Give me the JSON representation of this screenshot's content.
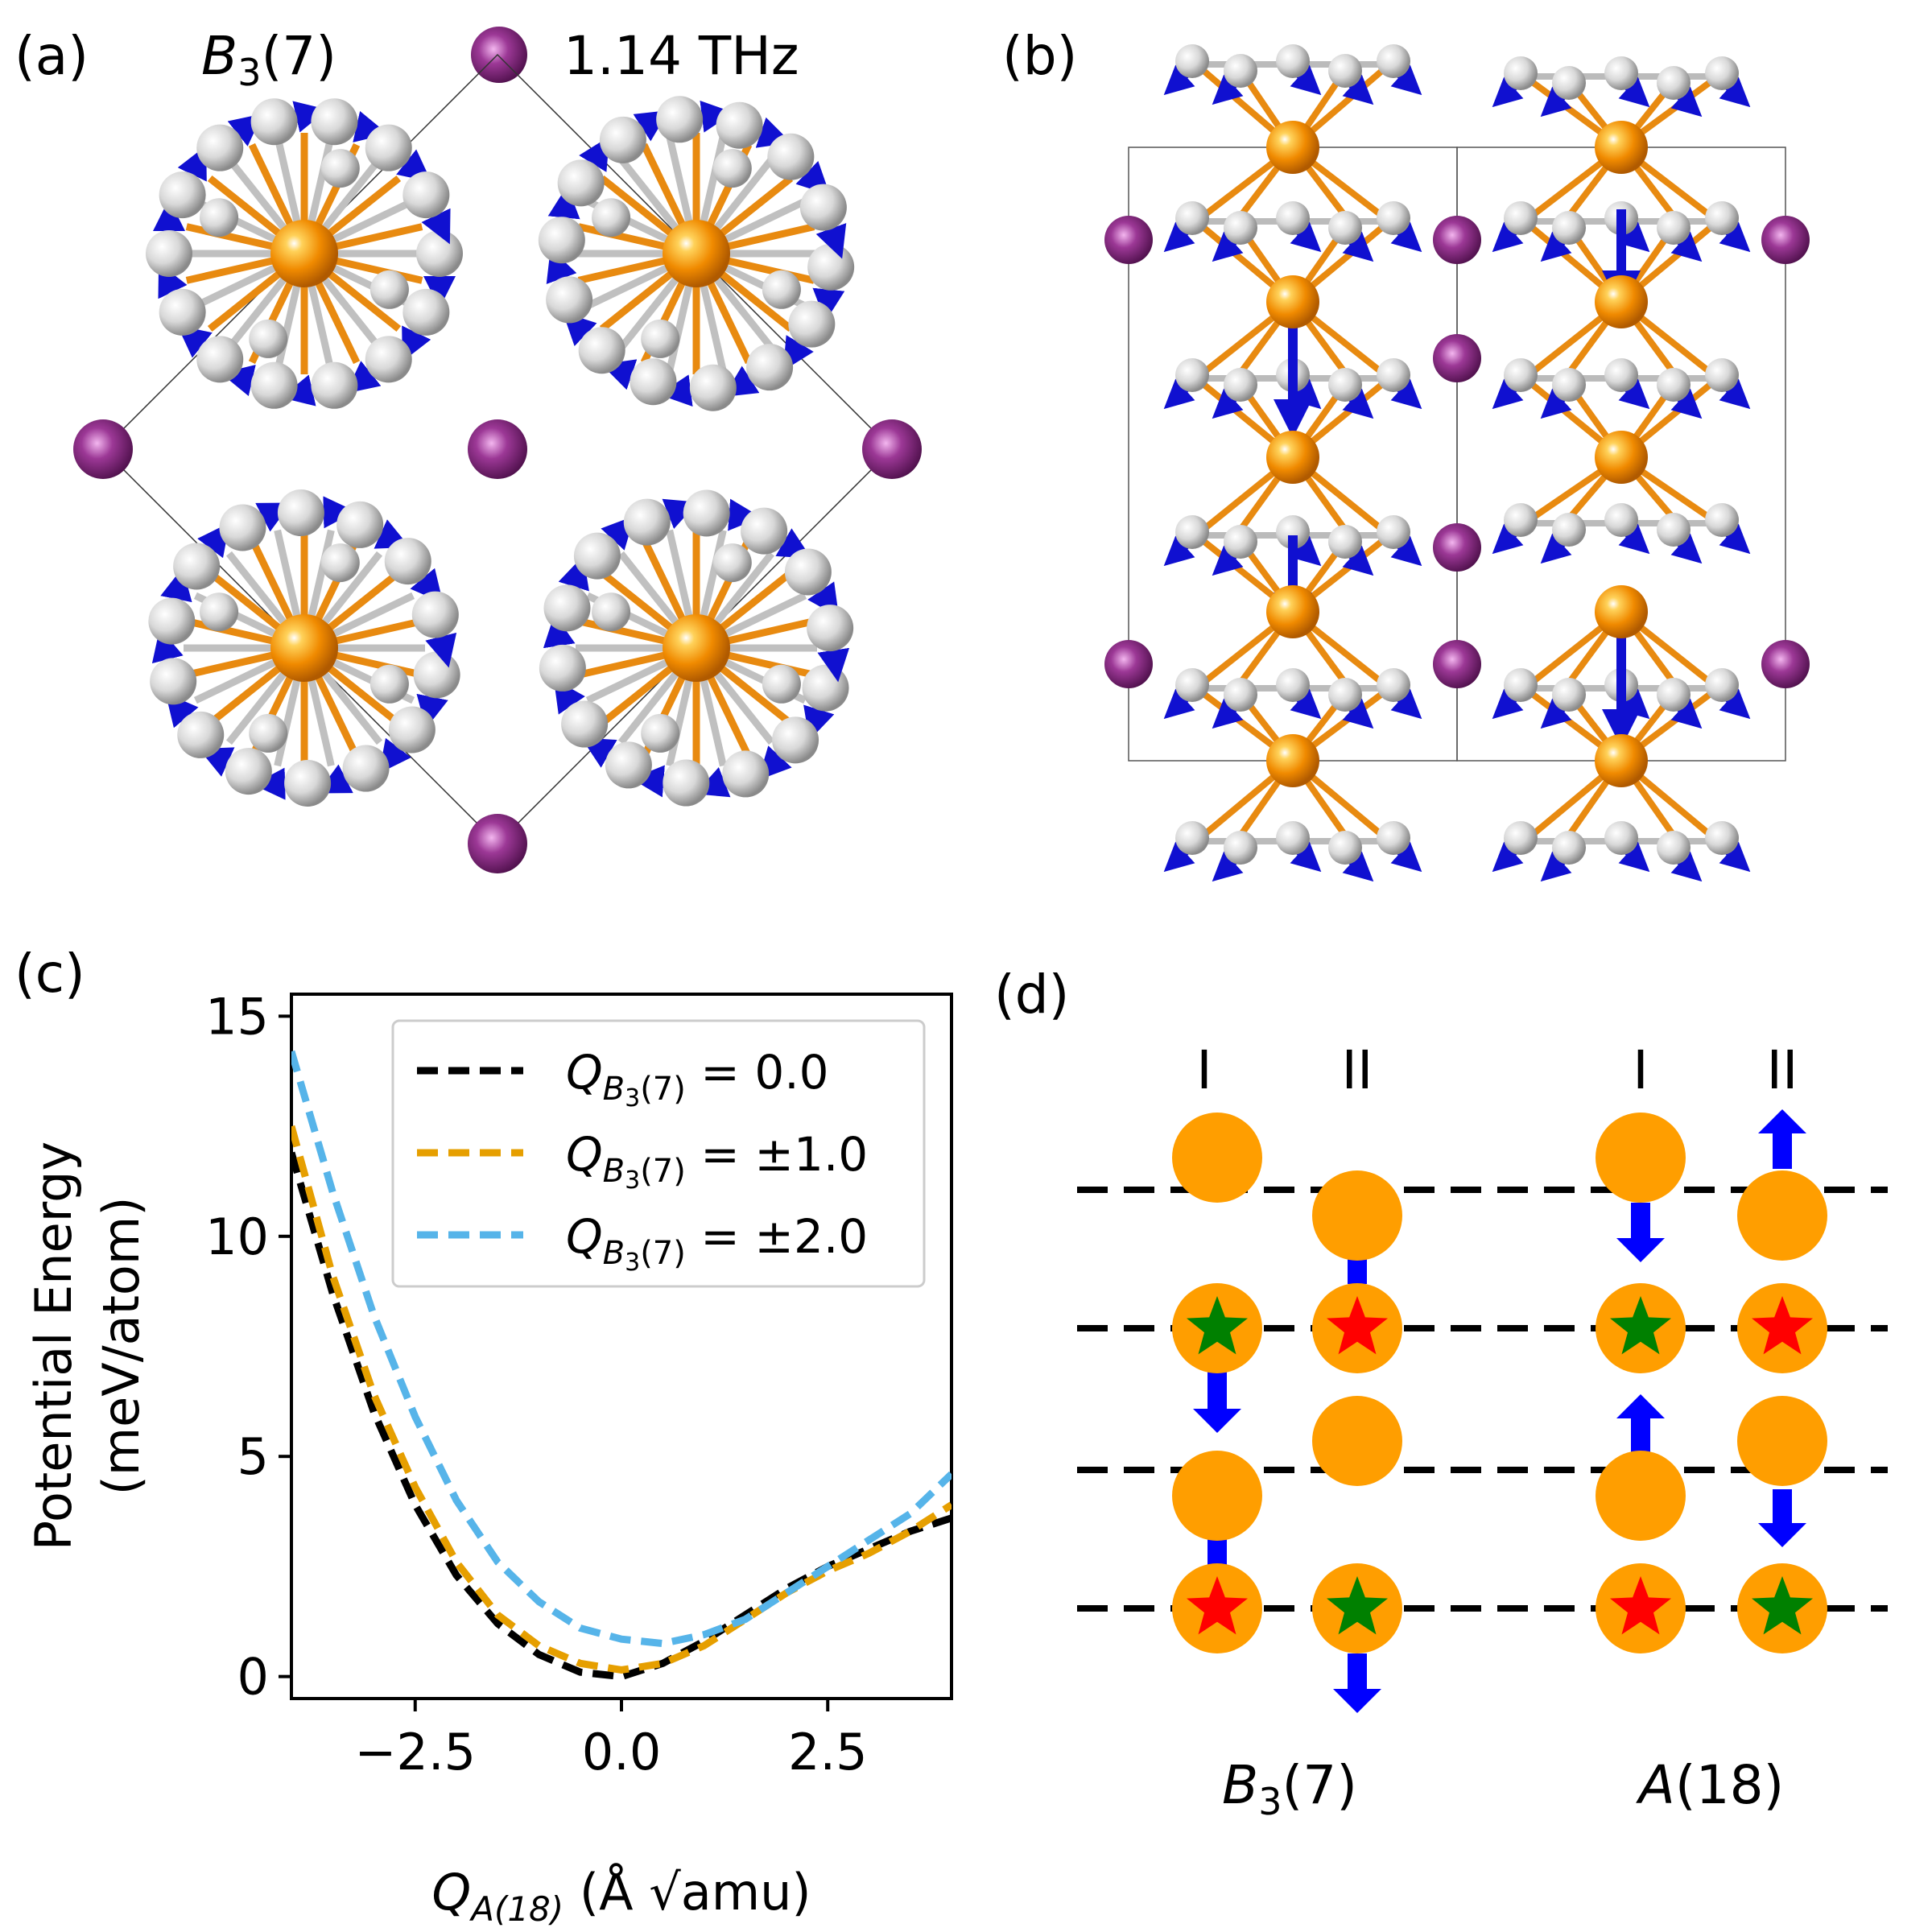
{
  "panel_a": {
    "label": "(a)",
    "mode_base": "B",
    "mode_sub": "3",
    "mode_suffix": "(7)",
    "frequency": "1.14 THz"
  },
  "panel_b": {
    "label": "(b)"
  },
  "panel_c": {
    "label": "(c)"
  },
  "panel_d": {
    "label": "(d)",
    "column_labels": [
      "I",
      "II",
      "I",
      "II"
    ],
    "group_1": {
      "base": "B",
      "sub": "3",
      "suffix": "(7)"
    },
    "group_2": {
      "base": "A",
      "suffix": "(18)"
    }
  },
  "colors": {
    "orange_atom": "#ff9e00",
    "silver_atom": "#c8c8c8",
    "purple_atom": "#8b2c86",
    "arrow_blue": "#0000ff",
    "star_green": "#008000",
    "star_red": "#ff0000"
  },
  "chart_data": {
    "type": "line",
    "xlabel_text": "(Å √amu)",
    "xlabel_var": "Q",
    "xlabel_sub": "A(18)",
    "ylabel_line1": "Potential Energy",
    "ylabel_line2": "(meV/atom)",
    "xlim": [
      -4,
      4
    ],
    "ylim": [
      -0.5,
      15.5
    ],
    "xticks": [
      -2.5,
      0.0,
      2.5
    ],
    "xtick_labels": [
      "−2.5",
      "0.0",
      "2.5"
    ],
    "yticks": [
      0,
      5,
      10,
      15
    ],
    "ytick_labels": [
      "0",
      "5",
      "10",
      "15"
    ],
    "legend_position": "top-right",
    "series": [
      {
        "name": "Q_B3(7) = 0.0",
        "legend_value": "= 0.0",
        "color": "#000000",
        "x": [
          -4.0,
          -3.5,
          -3.0,
          -2.5,
          -2.0,
          -1.5,
          -1.0,
          -0.5,
          0.0,
          0.5,
          1.0,
          1.5,
          2.0,
          2.5,
          3.0,
          3.5,
          4.0
        ],
        "y": [
          11.9,
          8.7,
          6.0,
          3.9,
          2.3,
          1.2,
          0.5,
          0.1,
          0.0,
          0.3,
          0.8,
          1.4,
          2.0,
          2.5,
          2.9,
          3.3,
          3.6
        ]
      },
      {
        "name": "Q_B3(7) = ±1.0",
        "legend_value": "= ±1.0",
        "color": "#e69f00",
        "x": [
          -4.0,
          -3.5,
          -3.0,
          -2.5,
          -2.0,
          -1.5,
          -1.0,
          -0.5,
          0.0,
          0.5,
          1.0,
          1.5,
          2.0,
          2.5,
          3.0,
          3.5,
          4.0
        ],
        "y": [
          12.5,
          9.1,
          6.4,
          4.3,
          2.6,
          1.4,
          0.7,
          0.3,
          0.15,
          0.3,
          0.7,
          1.3,
          1.9,
          2.4,
          2.8,
          3.3,
          3.9
        ]
      },
      {
        "name": "Q_B3(7) = ±2.0",
        "legend_value": "= ±2.0",
        "color": "#56b4e9",
        "x": [
          -4.0,
          -3.5,
          -3.0,
          -2.5,
          -2.0,
          -1.5,
          -1.0,
          -0.5,
          0.0,
          0.5,
          1.0,
          1.5,
          2.0,
          2.5,
          3.0,
          3.5,
          4.0
        ],
        "y": [
          14.2,
          11.0,
          8.2,
          5.9,
          4.0,
          2.6,
          1.7,
          1.1,
          0.85,
          0.75,
          0.95,
          1.3,
          1.9,
          2.5,
          3.1,
          3.7,
          4.6
        ]
      }
    ]
  }
}
